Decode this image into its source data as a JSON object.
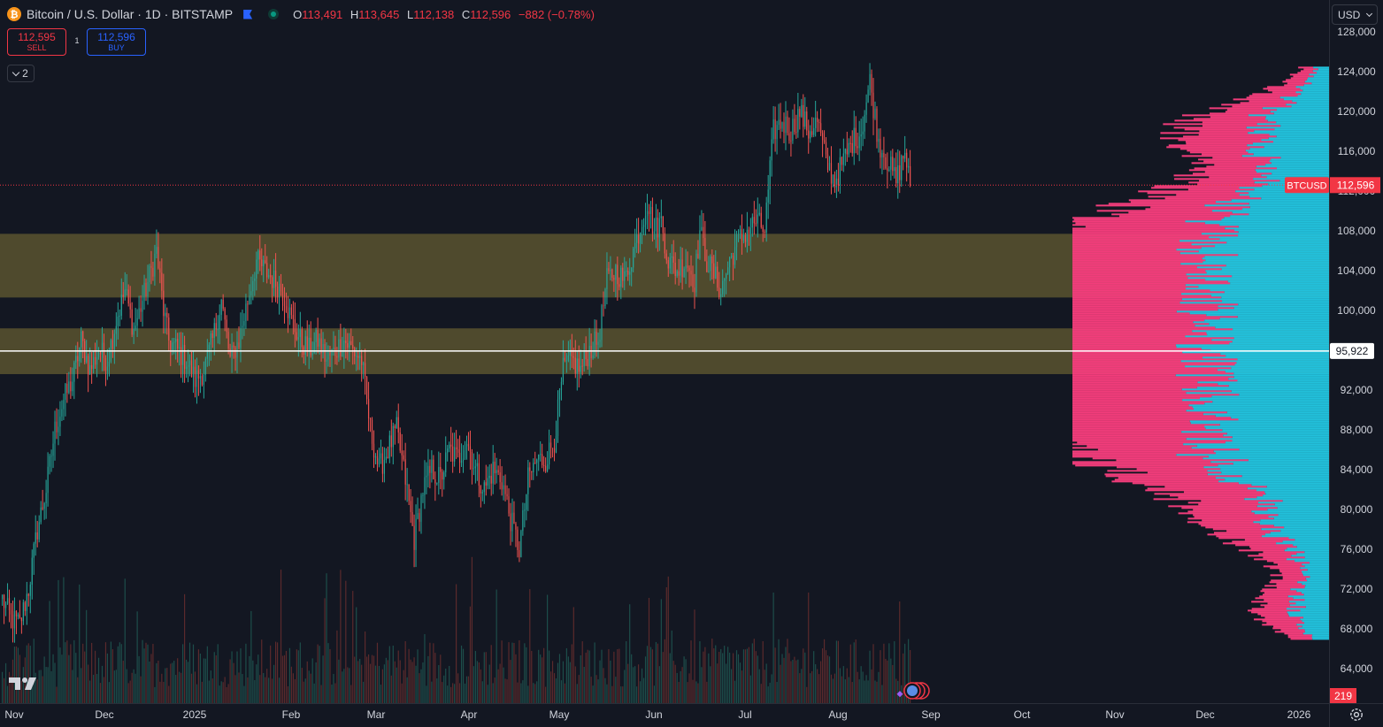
{
  "header": {
    "symbol_text": "Bitcoin / U.S. Dollar · 1D · BITSTAMP",
    "coin_icon": "bitcoin-icon",
    "ohlc": {
      "o_label": "O",
      "o": "113,491",
      "h_label": "H",
      "h": "113,645",
      "l_label": "L",
      "l": "112,138",
      "c_label": "C",
      "c": "112,596",
      "change": "−882 (−0.78%)"
    }
  },
  "trade": {
    "sell_price": "112,595",
    "sell_label": "SELL",
    "spread": "1",
    "buy_price": "112,596",
    "buy_label": "BUY"
  },
  "indicators_toggle": "2",
  "currency": "USD",
  "colors": {
    "bg": "#131722",
    "up": "#26a69a",
    "down": "#ef5350",
    "zone": "#4f4a2d",
    "vp_up": "#22c1dc",
    "vp_down": "#f23d7b",
    "grid_text": "#d1d4dc"
  },
  "chart_data": {
    "type": "candlestick",
    "y_axis": {
      "range": [
        62000,
        129000
      ],
      "ticks": [
        "128,000",
        "124,000",
        "120,000",
        "116,000",
        "112,000",
        "108,000",
        "104,000",
        "100,000",
        "96,000",
        "92,000",
        "88,000",
        "84,000",
        "80,000",
        "76,000",
        "72,000",
        "68,000",
        "64,000"
      ]
    },
    "x_axis": {
      "labels": [
        "Nov",
        "Dec",
        "2025",
        "Feb",
        "Mar",
        "Apr",
        "May",
        "Jun",
        "Jul",
        "Aug",
        "Sep",
        "Oct",
        "Nov",
        "Dec",
        "2026"
      ]
    },
    "price_label": {
      "series_name": "BTCUSD",
      "value": "112,596"
    },
    "horizontal_line": {
      "value": 95922,
      "label": "95,922"
    },
    "volume_label": "219",
    "zones": [
      {
        "from": 101300,
        "to": 107700
      },
      {
        "from": 93600,
        "to": 98200
      }
    ],
    "anchors": [
      [
        0,
        71000
      ],
      [
        5,
        69000
      ],
      [
        10,
        68500
      ],
      [
        15,
        72000
      ],
      [
        20,
        78000
      ],
      [
        25,
        82000
      ],
      [
        30,
        88000
      ],
      [
        35,
        91000
      ],
      [
        40,
        93000
      ],
      [
        45,
        97000
      ],
      [
        50,
        94000
      ],
      [
        55,
        96000
      ],
      [
        60,
        95000
      ],
      [
        65,
        99000
      ],
      [
        70,
        102000
      ],
      [
        75,
        98000
      ],
      [
        80,
        101000
      ],
      [
        85,
        104000
      ],
      [
        88,
        106000
      ],
      [
        92,
        100000
      ],
      [
        95,
        97000
      ],
      [
        100,
        96000
      ],
      [
        105,
        95000
      ],
      [
        110,
        93000
      ],
      [
        115,
        94000
      ],
      [
        120,
        97000
      ],
      [
        125,
        101000
      ],
      [
        130,
        95000
      ],
      [
        135,
        97000
      ],
      [
        140,
        101000
      ],
      [
        145,
        105000
      ],
      [
        150,
        104000
      ],
      [
        155,
        103000
      ],
      [
        160,
        102000
      ],
      [
        165,
        99000
      ],
      [
        170,
        97000
      ],
      [
        175,
        96000
      ],
      [
        180,
        97000
      ],
      [
        185,
        95000
      ],
      [
        190,
        96000
      ],
      [
        195,
        97000
      ],
      [
        200,
        96000
      ],
      [
        205,
        95000
      ],
      [
        210,
        88000
      ],
      [
        215,
        84000
      ],
      [
        220,
        86000
      ],
      [
        225,
        88000
      ],
      [
        230,
        83000
      ],
      [
        235,
        77000
      ],
      [
        240,
        82000
      ],
      [
        245,
        84000
      ],
      [
        250,
        83000
      ],
      [
        255,
        86000
      ],
      [
        260,
        85000
      ],
      [
        265,
        87000
      ],
      [
        270,
        84000
      ],
      [
        275,
        82000
      ],
      [
        280,
        84000
      ],
      [
        285,
        83000
      ],
      [
        290,
        79000
      ],
      [
        295,
        76000
      ],
      [
        300,
        83000
      ],
      [
        305,
        85000
      ],
      [
        310,
        85000
      ],
      [
        315,
        87000
      ],
      [
        320,
        94000
      ],
      [
        325,
        95000
      ],
      [
        330,
        94000
      ],
      [
        335,
        96000
      ],
      [
        340,
        97000
      ],
      [
        345,
        103000
      ],
      [
        350,
        104000
      ],
      [
        355,
        103000
      ],
      [
        360,
        106000
      ],
      [
        365,
        109000
      ],
      [
        368,
        111000
      ],
      [
        372,
        108000
      ],
      [
        376,
        109000
      ],
      [
        380,
        105000
      ],
      [
        385,
        104000
      ],
      [
        390,
        105000
      ],
      [
        395,
        103000
      ],
      [
        398,
        108000
      ],
      [
        402,
        105000
      ],
      [
        405,
        104000
      ],
      [
        410,
        102000
      ],
      [
        415,
        105000
      ],
      [
        420,
        107000
      ],
      [
        425,
        108000
      ],
      [
        430,
        109000
      ],
      [
        435,
        108000
      ],
      [
        440,
        118000
      ],
      [
        445,
        119000
      ],
      [
        450,
        118000
      ],
      [
        455,
        120000
      ],
      [
        460,
        118000
      ],
      [
        465,
        119000
      ],
      [
        470,
        115000
      ],
      [
        475,
        113000
      ],
      [
        480,
        115000
      ],
      [
        485,
        117000
      ],
      [
        490,
        118000
      ],
      [
        495,
        123000
      ],
      [
        500,
        117000
      ],
      [
        505,
        115000
      ],
      [
        510,
        113000
      ],
      [
        515,
        116000
      ],
      [
        518,
        112600
      ]
    ],
    "volume_profile_note": "",
    "value_area_note": ""
  }
}
